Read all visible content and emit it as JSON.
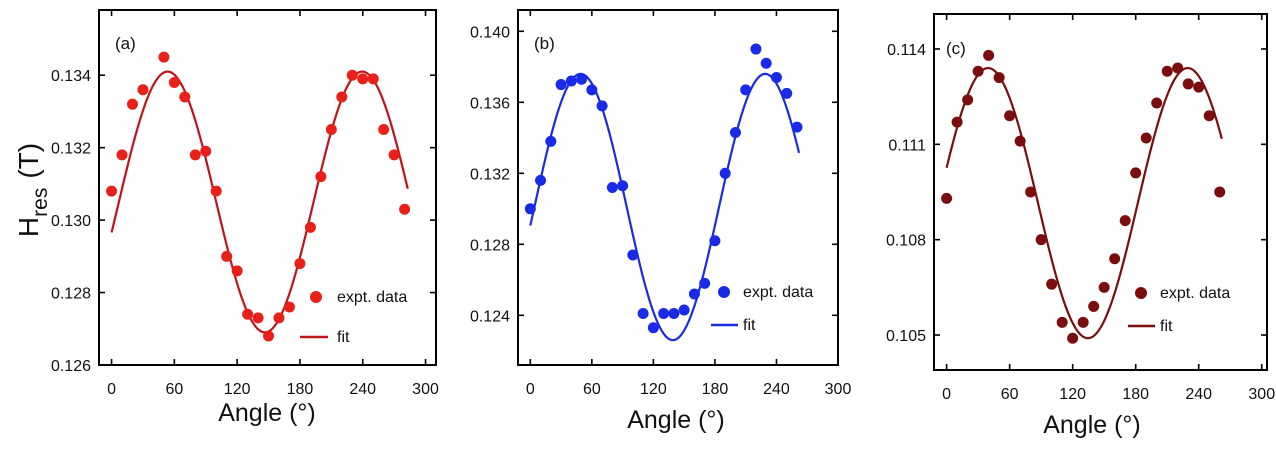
{
  "chart_data": [
    {
      "type": "scatter",
      "panel_label": "(a)",
      "xlabel": "Angle (°)",
      "ylabel": "H",
      "ylabel_sub": "res",
      "ylabel_unit": "(T)",
      "xlim": [
        -12,
        310
      ],
      "ylim": [
        0.126,
        0.1358
      ],
      "xticks": [
        0,
        60,
        120,
        180,
        240,
        300
      ],
      "yticks": [
        0.126,
        0.128,
        0.13,
        0.132,
        0.134
      ],
      "ytick_labels": [
        "0.126",
        "0.128",
        "0.130",
        "0.132",
        "0.134"
      ],
      "color": "#e8201a",
      "fit_color": "#c0141a",
      "legend": {
        "points": "expt. data",
        "line": "fit",
        "position": "lower-right"
      },
      "series": [
        {
          "name": "expt. data",
          "x": [
            0,
            10,
            20,
            30,
            50,
            60,
            70,
            80,
            90,
            100,
            110,
            120,
            130,
            140,
            150,
            160,
            170,
            180,
            190,
            200,
            210,
            220,
            230,
            240,
            250,
            260,
            270,
            280
          ],
          "y": [
            0.1308,
            0.1318,
            0.1332,
            0.1336,
            0.1345,
            0.1338,
            0.1334,
            0.1318,
            0.1319,
            0.1308,
            0.129,
            0.1286,
            0.1274,
            0.1273,
            0.1268,
            0.1273,
            0.1276,
            0.1288,
            0.1298,
            0.1312,
            0.1325,
            0.1334,
            0.134,
            0.1339,
            0.1339,
            0.1325,
            0.1318,
            0.1303
          ]
        },
        {
          "name": "fit",
          "model": "sin",
          "offset": 0.1305,
          "amplitude": 0.0036,
          "period": 186,
          "phase_deg": 7,
          "x_range": [
            0,
            283
          ]
        }
      ]
    },
    {
      "type": "scatter",
      "panel_label": "(b)",
      "xlabel": "Angle (°)",
      "ylabel": "",
      "xlim": [
        -12,
        300
      ],
      "ylim": [
        0.1212,
        0.1412
      ],
      "xticks": [
        0,
        60,
        120,
        180,
        240,
        300
      ],
      "yticks": [
        0.124,
        0.128,
        0.132,
        0.136,
        0.14
      ],
      "ytick_labels": [
        "0.124",
        "0.128",
        "0.132",
        "0.136",
        "0.140"
      ],
      "color": "#1a2be8",
      "fit_color": "#1a2be8",
      "legend": {
        "points": "expt. data",
        "line": "fit",
        "position": "lower-right"
      },
      "series": [
        {
          "name": "expt. data",
          "x": [
            0,
            10,
            20,
            30,
            40,
            50,
            60,
            70,
            80,
            90,
            100,
            110,
            120,
            130,
            140,
            150,
            160,
            170,
            180,
            190,
            200,
            210,
            220,
            230,
            240,
            250,
            260
          ],
          "y": [
            0.13,
            0.1316,
            0.1338,
            0.137,
            0.1372,
            0.1373,
            0.1367,
            0.1358,
            0.1312,
            0.1313,
            0.1274,
            0.1241,
            0.1233,
            0.1241,
            0.1241,
            0.1243,
            0.1252,
            0.1258,
            0.1282,
            0.132,
            0.1343,
            0.1367,
            0.139,
            0.1382,
            0.1374,
            0.1365,
            0.1346
          ]
        },
        {
          "name": "fit",
          "model": "sin",
          "offset": 0.1301,
          "amplitude": 0.0075,
          "period": 180,
          "phase_deg": 4,
          "x_range": [
            0,
            262
          ]
        }
      ]
    },
    {
      "type": "scatter",
      "panel_label": "(c)",
      "xlabel": "Angle (°)",
      "ylabel": "",
      "xlim": [
        -12,
        305
      ],
      "ylim": [
        0.1039,
        0.1151
      ],
      "xticks": [
        0,
        60,
        120,
        180,
        240,
        300
      ],
      "yticks": [
        0.105,
        0.108,
        0.111,
        0.114
      ],
      "ytick_labels": [
        "0.105",
        "0.108",
        "0.111",
        "0.114"
      ],
      "color": "#7a0d0d",
      "fit_color": "#7a0d0d",
      "legend": {
        "points": "expt. data",
        "line": "fit",
        "position": "lower-right"
      },
      "series": [
        {
          "name": "expt. data",
          "x": [
            0,
            10,
            20,
            30,
            40,
            50,
            60,
            70,
            80,
            90,
            100,
            110,
            120,
            130,
            140,
            150,
            160,
            170,
            180,
            190,
            200,
            210,
            220,
            230,
            240,
            250,
            260
          ],
          "y": [
            0.1093,
            0.1117,
            0.1124,
            0.1133,
            0.1138,
            0.1131,
            0.1119,
            0.1111,
            0.1095,
            0.108,
            0.1066,
            0.1054,
            0.1049,
            0.1054,
            0.1059,
            0.1065,
            0.1074,
            0.1086,
            0.1101,
            0.1112,
            0.1123,
            0.1133,
            0.1134,
            0.1129,
            0.1128,
            0.1119,
            0.1095
          ]
        },
        {
          "name": "fit",
          "model": "sin",
          "offset": 0.10915,
          "amplitude": 0.00425,
          "period": 190,
          "phase_deg": -8,
          "x_range": [
            0,
            262
          ]
        }
      ]
    }
  ]
}
